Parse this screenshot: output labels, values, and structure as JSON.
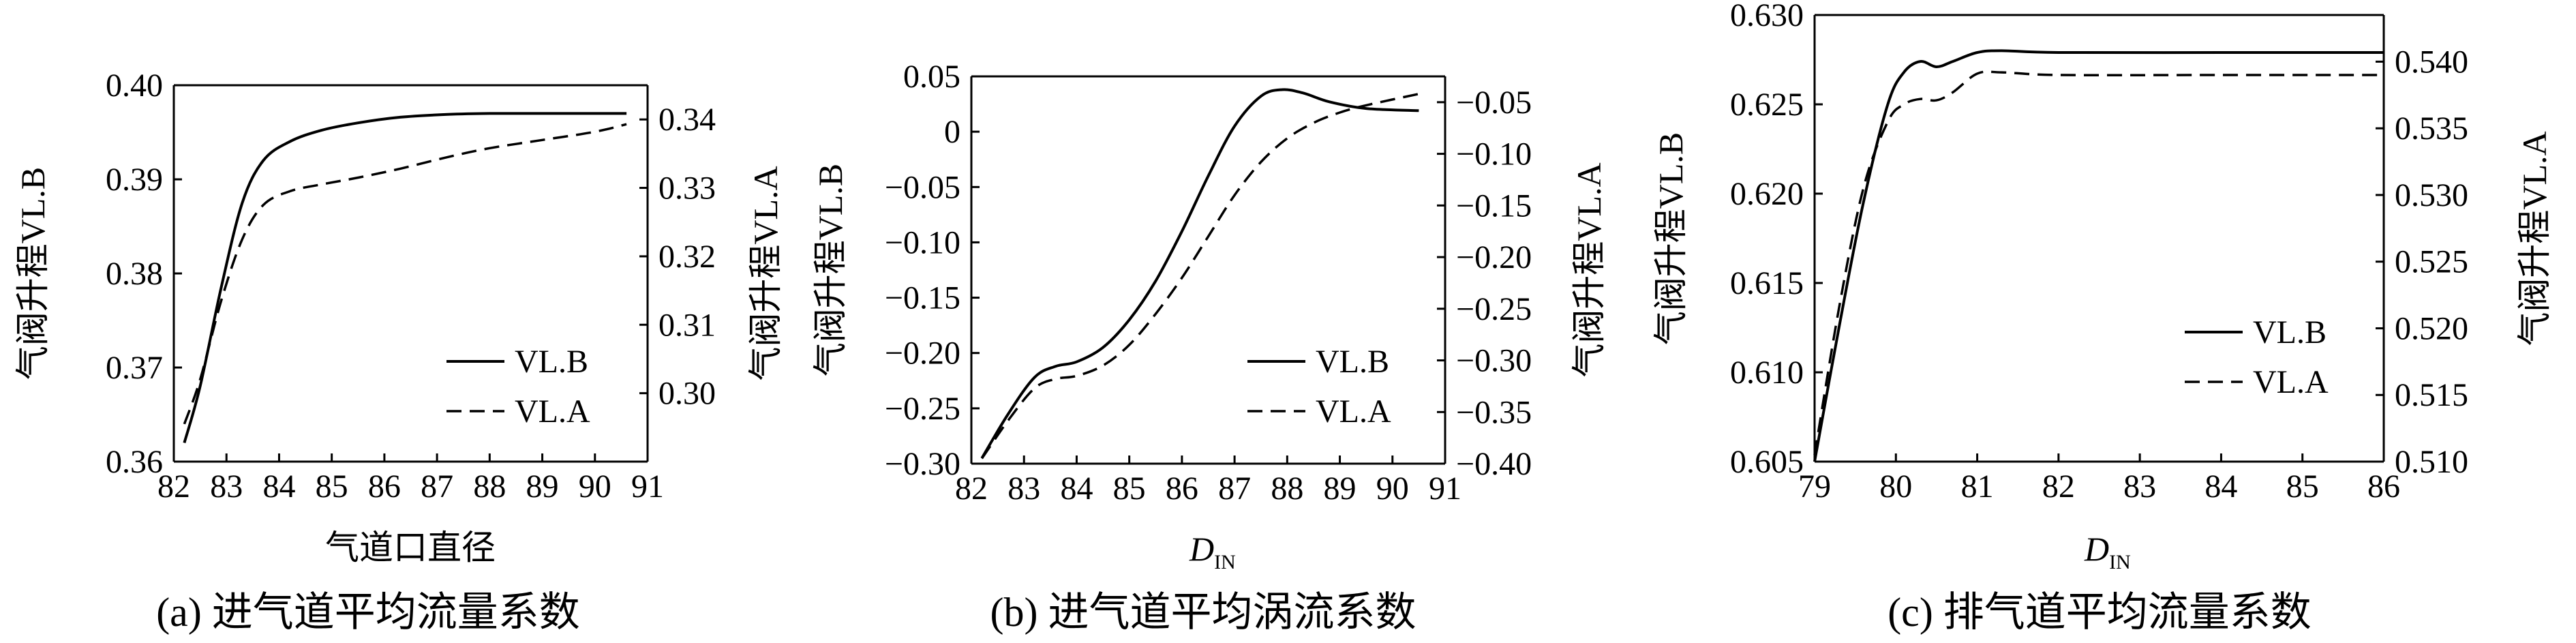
{
  "chart_data": [
    {
      "type": "line",
      "caption": "(a) 进气道平均流量系数",
      "xlabel": "气道口直径",
      "ylabel_left": "气阀升程VL.B",
      "ylabel_right": "气阀升程VL.A",
      "xlim": [
        82,
        91
      ],
      "ylim_left": [
        0.36,
        0.4
      ],
      "ylim_right": [
        0.29,
        0.345
      ],
      "x_ticks": [
        "82",
        "83",
        "84",
        "85",
        "86",
        "87",
        "88",
        "89",
        "90",
        "91"
      ],
      "y_left_ticks": [
        "0.36",
        "0.37",
        "0.38",
        "0.39",
        "0.40"
      ],
      "y_left_tick_values": [
        0.36,
        0.37,
        0.38,
        0.39,
        0.4
      ],
      "y_right_ticks": [
        "0.30",
        "0.31",
        "0.32",
        "0.33",
        "0.34"
      ],
      "y_right_tick_values": [
        0.3,
        0.31,
        0.32,
        0.33,
        0.34
      ],
      "legend": [
        "VL.B",
        "VL.A"
      ],
      "legend_position": "lower-right",
      "series": [
        {
          "name": "VL.B",
          "axis": "left",
          "style": "solid",
          "x": [
            82.2,
            82.5,
            82.9,
            83.3,
            83.7,
            84.2,
            84.8,
            85.5,
            86.3,
            87.2,
            88.0,
            89.0,
            90.0,
            90.6
          ],
          "y": [
            0.362,
            0.368,
            0.3785,
            0.3875,
            0.392,
            0.394,
            0.3952,
            0.396,
            0.3966,
            0.3969,
            0.397,
            0.397,
            0.397,
            0.397
          ]
        },
        {
          "name": "VL.A",
          "axis": "right",
          "style": "dashed",
          "x": [
            82.2,
            82.5,
            82.9,
            83.3,
            83.7,
            84.2,
            84.8,
            85.5,
            86.3,
            87.2,
            88.0,
            89.0,
            90.0,
            90.6
          ],
          "y": [
            0.2955,
            0.302,
            0.3135,
            0.3225,
            0.3275,
            0.3295,
            0.3305,
            0.3315,
            0.3328,
            0.3345,
            0.3358,
            0.337,
            0.3382,
            0.3393
          ]
        }
      ]
    },
    {
      "type": "line",
      "caption": "(b) 进气道平均涡流系数",
      "xlabel": "D",
      "xlabel_sub": "IN",
      "ylabel_left": "气阀升程VL.B",
      "ylabel_right": "气阀升程VL.A",
      "xlim": [
        82,
        91
      ],
      "ylim_left": [
        -0.3,
        0.05
      ],
      "ylim_right": [
        -0.4,
        -0.025
      ],
      "x_ticks": [
        "82",
        "83",
        "84",
        "85",
        "86",
        "87",
        "88",
        "89",
        "90",
        "91"
      ],
      "y_left_ticks": [
        "-0.30",
        "-0.25",
        "-0.20",
        "-0.15",
        "-0.10",
        "-0.05",
        "0",
        "0.05"
      ],
      "y_left_tick_values": [
        -0.3,
        -0.25,
        -0.2,
        -0.15,
        -0.1,
        -0.05,
        0,
        0.05
      ],
      "y_right_ticks": [
        "-0.40",
        "-0.35",
        "-0.30",
        "-0.25",
        "-0.20",
        "-0.15",
        "-0.10",
        "-0.05"
      ],
      "y_right_tick_values": [
        -0.4,
        -0.35,
        -0.3,
        -0.25,
        -0.2,
        -0.15,
        -0.1,
        -0.05
      ],
      "legend": [
        "VL.B",
        "VL.A"
      ],
      "legend_position": "lower-right",
      "series": [
        {
          "name": "VL.B",
          "axis": "left",
          "style": "solid",
          "x": [
            82.2,
            82.7,
            83.2,
            83.6,
            84.0,
            84.5,
            85.0,
            85.5,
            86.0,
            86.5,
            87.0,
            87.5,
            87.9,
            88.3,
            88.8,
            89.5,
            90.5
          ],
          "y": [
            -0.295,
            -0.255,
            -0.222,
            -0.212,
            -0.208,
            -0.195,
            -0.17,
            -0.135,
            -0.09,
            -0.04,
            0.005,
            0.032,
            0.038,
            0.035,
            0.027,
            0.021,
            0.019
          ]
        },
        {
          "name": "VL.A",
          "axis": "right",
          "style": "dashed",
          "x": [
            82.2,
            82.7,
            83.2,
            83.6,
            84.0,
            84.5,
            85.0,
            85.5,
            86.0,
            86.5,
            87.0,
            87.5,
            88.0,
            88.5,
            89.0,
            89.5,
            90.5
          ],
          "y": [
            -0.395,
            -0.358,
            -0.327,
            -0.318,
            -0.315,
            -0.305,
            -0.285,
            -0.255,
            -0.22,
            -0.18,
            -0.14,
            -0.108,
            -0.085,
            -0.07,
            -0.06,
            -0.053,
            -0.042
          ]
        }
      ]
    },
    {
      "type": "line",
      "caption": "(c) 排气道平均流量系数",
      "xlabel": "D",
      "xlabel_sub": "IN",
      "ylabel_left": "气阀升程VL.B",
      "ylabel_right": "气阀升程VL.A",
      "xlim": [
        79,
        86
      ],
      "ylim_left": [
        0.605,
        0.63
      ],
      "ylim_right": [
        0.51,
        0.5435
      ],
      "x_ticks": [
        "79",
        "80",
        "81",
        "82",
        "83",
        "84",
        "85",
        "86"
      ],
      "y_left_ticks": [
        "0.605",
        "0.610",
        "0.615",
        "0.620",
        "0.625",
        "0.630"
      ],
      "y_left_tick_values": [
        0.605,
        0.61,
        0.615,
        0.62,
        0.625,
        0.63
      ],
      "y_right_ticks": [
        "0.510",
        "0.515",
        "0.520",
        "0.525",
        "0.530",
        "0.535",
        "0.540"
      ],
      "y_right_tick_values": [
        0.51,
        0.515,
        0.52,
        0.525,
        0.53,
        0.535,
        0.54
      ],
      "legend": [
        "VL.B",
        "VL.A"
      ],
      "legend_position": "center-right",
      "series": [
        {
          "name": "VL.B",
          "axis": "left",
          "style": "solid",
          "x": [
            79.0,
            79.3,
            79.6,
            79.9,
            80.1,
            80.3,
            80.5,
            80.7,
            81.0,
            81.3,
            82.0,
            84.0,
            86.0
          ],
          "y": [
            0.605,
            0.6125,
            0.6195,
            0.625,
            0.6268,
            0.6274,
            0.6271,
            0.6274,
            0.6279,
            0.628,
            0.6279,
            0.6279,
            0.6279
          ]
        },
        {
          "name": "VL.A",
          "axis": "right",
          "style": "dashed",
          "x": [
            79.0,
            79.3,
            79.6,
            79.9,
            80.1,
            80.3,
            80.5,
            80.7,
            81.0,
            81.3,
            82.0,
            84.0,
            86.0
          ],
          "y": [
            0.5105,
            0.5215,
            0.5305,
            0.5355,
            0.5368,
            0.5372,
            0.5371,
            0.5377,
            0.5391,
            0.5392,
            0.539,
            0.539,
            0.539
          ]
        }
      ]
    }
  ]
}
